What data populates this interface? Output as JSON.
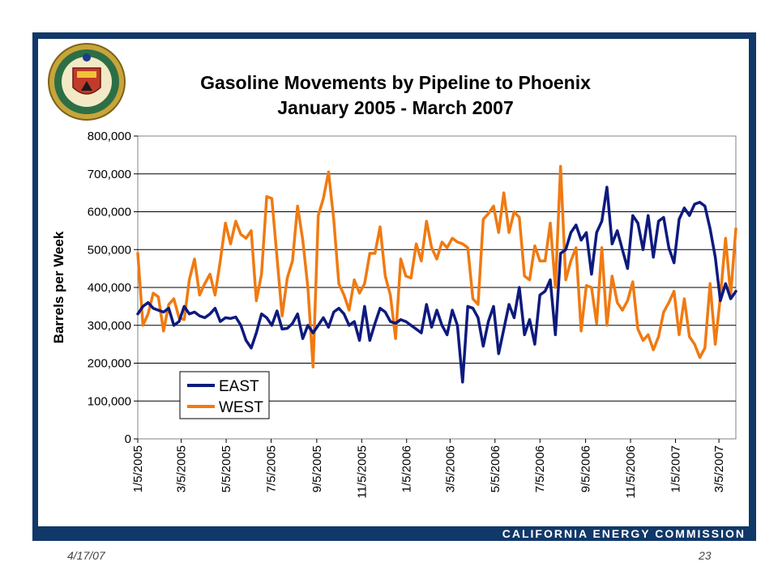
{
  "slide": {
    "organization": "CALIFORNIA ENERGY COMMISSION",
    "date": "4/17/07",
    "page_number": "23",
    "logo": "state-of-california-energy-commission-seal"
  },
  "colors": {
    "frame": "#103868",
    "east": "#0D1A7E",
    "west": "#F07A12"
  },
  "chart_data": {
    "type": "line",
    "title": "Gasoline Movements by Pipeline to Phoenix",
    "subtitle": "January 2005 - March 2007",
    "xlabel": "",
    "ylabel": "Barrels per Week",
    "ylim": [
      0,
      800000
    ],
    "yticks": [
      "0",
      "100,000",
      "200,000",
      "300,000",
      "400,000",
      "500,000",
      "600,000",
      "700,000",
      "800,000"
    ],
    "xticks": [
      "1/5/2005",
      "3/5/2005",
      "5/5/2005",
      "7/5/2005",
      "9/5/2005",
      "11/5/2005",
      "1/5/2006",
      "3/5/2006",
      "5/5/2006",
      "7/5/2006",
      "9/5/2006",
      "11/5/2006",
      "1/5/2007",
      "3/5/2007"
    ],
    "grid": true,
    "legend_position": "bottom-left",
    "series": [
      {
        "name": "EAST",
        "color": "#0D1A7E",
        "values": [
          "1/5/2005:330000",
          "1/12/2005:350000",
          "1/19/2005:360000",
          "1/26/2005:345000",
          "2/2/2005:340000",
          "2/9/2005:335000",
          "2/16/2005:345000",
          "2/23/2005:300000",
          "3/2/2005:310000",
          "3/9/2005:350000",
          "3/16/2005:330000",
          "3/23/2005:335000",
          "3/30/2005:325000",
          "4/6/2005:320000",
          "4/13/2005:330000",
          "4/20/2005:345000",
          "4/27/2005:310000",
          "5/4/2005:320000",
          "5/11/2005:318000",
          "5/18/2005:322000",
          "5/25/2005:300000",
          "6/1/2005:260000",
          "6/8/2005:240000",
          "6/15/2005:280000",
          "6/22/2005:330000",
          "6/29/2005:320000",
          "7/6/2005:300000",
          "7/13/2005:338000",
          "7/20/2005:290000",
          "7/27/2005:292000",
          "8/3/2005:305000",
          "8/10/2005:330000",
          "8/17/2005:265000",
          "8/24/2005:300000",
          "8/31/2005:280000",
          "9/7/2005:300000",
          "9/14/2005:320000",
          "9/21/2005:295000",
          "9/28/2005:335000",
          "10/5/2005:345000",
          "10/12/2005:330000",
          "10/19/2005:300000",
          "10/26/2005:310000",
          "11/2/2005:260000",
          "11/9/2005:350000",
          "11/16/2005:260000",
          "11/23/2005:305000",
          "11/30/2005:345000",
          "12/7/2005:335000",
          "12/14/2005:310000",
          "12/21/2005:305000",
          "12/28/2005:315000",
          "1/4/2006:310000",
          "1/11/2006:300000",
          "1/18/2006:290000",
          "1/25/2006:280000",
          "2/1/2006:355000",
          "2/8/2006:295000",
          "2/15/2006:340000",
          "2/22/2006:300000",
          "3/1/2006:275000",
          "3/8/2006:340000",
          "3/15/2006:300000",
          "3/22/2006:150000",
          "3/29/2006:350000",
          "4/5/2006:345000",
          "4/12/2006:320000",
          "4/19/2006:245000",
          "4/26/2006:310000",
          "5/3/2006:350000",
          "5/10/2006:225000",
          "5/17/2006:290000",
          "5/24/2006:355000",
          "5/31/2006:320000",
          "6/7/2006:400000",
          "6/14/2006:275000",
          "6/21/2006:315000",
          "6/28/2006:250000",
          "7/5/2006:380000",
          "7/12/2006:390000",
          "7/19/2006:420000",
          "7/26/2006:275000",
          "8/2/2006:490000",
          "8/9/2006:500000",
          "8/16/2006:545000",
          "8/23/2006:565000",
          "8/30/2006:525000",
          "9/6/2006:545000",
          "9/13/2006:435000",
          "9/20/2006:545000",
          "9/27/2006:575000",
          "10/4/2006:665000",
          "10/11/2006:515000",
          "10/18/2006:550000",
          "10/25/2006:500000",
          "11/1/2006:450000",
          "11/8/2006:590000",
          "11/15/2006:570000",
          "11/22/2006:500000",
          "11/29/2006:590000",
          "12/6/2006:480000",
          "12/13/2006:575000",
          "12/20/2006:585000",
          "12/27/2006:505000",
          "1/3/2007:465000",
          "1/10/2007:580000",
          "1/17/2007:610000",
          "1/24/2007:590000",
          "1/31/2007:620000",
          "2/7/2007:625000",
          "2/14/2007:615000",
          "2/21/2007:555000",
          "2/28/2007:480000",
          "3/7/2007:365000",
          "3/14/2007:410000",
          "3/21/2007:370000",
          "3/28/2007:390000"
        ]
      },
      {
        "name": "WEST",
        "color": "#F07A12",
        "values": [
          "1/5/2005:490000",
          "1/12/2005:300000",
          "1/19/2005:330000",
          "1/26/2005:385000",
          "2/2/2005:375000",
          "2/9/2005:285000",
          "2/16/2005:355000",
          "2/23/2005:370000",
          "3/2/2005:320000",
          "3/9/2005:315000",
          "3/16/2005:420000",
          "3/23/2005:475000",
          "3/30/2005:380000",
          "4/6/2005:410000",
          "4/13/2005:435000",
          "4/20/2005:380000",
          "4/27/2005:470000",
          "5/4/2005:570000",
          "5/11/2005:515000",
          "5/18/2005:575000",
          "5/25/2005:540000",
          "6/1/2005:530000",
          "6/8/2005:550000",
          "6/15/2005:365000",
          "6/22/2005:435000",
          "6/29/2005:640000",
          "7/6/2005:635000",
          "7/13/2005:480000",
          "7/20/2005:325000",
          "7/27/2005:425000",
          "8/3/2005:470000",
          "8/10/2005:615000",
          "8/17/2005:525000",
          "8/24/2005:400000",
          "8/31/2005:190000",
          "9/7/2005:590000",
          "9/14/2005:635000",
          "9/21/2005:705000",
          "9/28/2005:580000",
          "10/5/2005:410000",
          "10/12/2005:380000",
          "10/19/2005:340000",
          "10/26/2005:420000",
          "11/2/2005:385000",
          "11/9/2005:410000",
          "11/16/2005:490000",
          "11/23/2005:490000",
          "11/30/2005:560000",
          "12/7/2005:430000",
          "12/14/2005:380000",
          "12/21/2005:265000",
          "12/28/2005:475000",
          "1/4/2006:430000",
          "1/11/2006:425000",
          "1/18/2006:515000",
          "1/25/2006:470000",
          "2/1/2006:575000",
          "2/8/2006:505000",
          "2/15/2006:475000",
          "2/22/2006:520000",
          "3/1/2006:505000",
          "3/8/2006:530000",
          "3/15/2006:520000",
          "3/22/2006:515000",
          "3/29/2006:505000",
          "4/5/2006:370000",
          "4/12/2006:355000",
          "4/19/2006:580000",
          "4/26/2006:595000",
          "5/3/2006:615000",
          "5/10/2006:545000",
          "5/17/2006:650000",
          "5/24/2006:545000",
          "5/31/2006:600000",
          "6/7/2006:585000",
          "6/14/2006:430000",
          "6/21/2006:420000",
          "6/28/2006:510000",
          "7/5/2006:470000",
          "7/12/2006:470000",
          "7/19/2006:570000",
          "7/26/2006:400000",
          "8/2/2006:720000",
          "8/9/2006:420000",
          "8/16/2006:470000",
          "8/23/2006:505000",
          "8/30/2006:285000",
          "9/6/2006:405000",
          "9/13/2006:400000",
          "9/20/2006:305000",
          "9/27/2006:505000",
          "10/4/2006:300000",
          "10/11/2006:430000",
          "10/18/2006:360000",
          "10/25/2006:340000",
          "11/1/2006:365000",
          "11/8/2006:415000",
          "11/15/2006:290000",
          "11/22/2006:260000",
          "11/29/2006:275000",
          "12/6/2006:235000",
          "12/13/2006:270000",
          "12/20/2006:335000",
          "12/27/2006:360000",
          "1/3/2007:390000",
          "1/10/2007:275000",
          "1/17/2007:370000",
          "1/24/2007:270000",
          "1/31/2007:250000",
          "2/7/2007:215000",
          "2/14/2007:240000",
          "2/21/2007:410000",
          "2/28/2007:250000",
          "3/7/2007:375000",
          "3/14/2007:530000",
          "3/21/2007:380000",
          "3/28/2007:555000"
        ]
      }
    ]
  }
}
